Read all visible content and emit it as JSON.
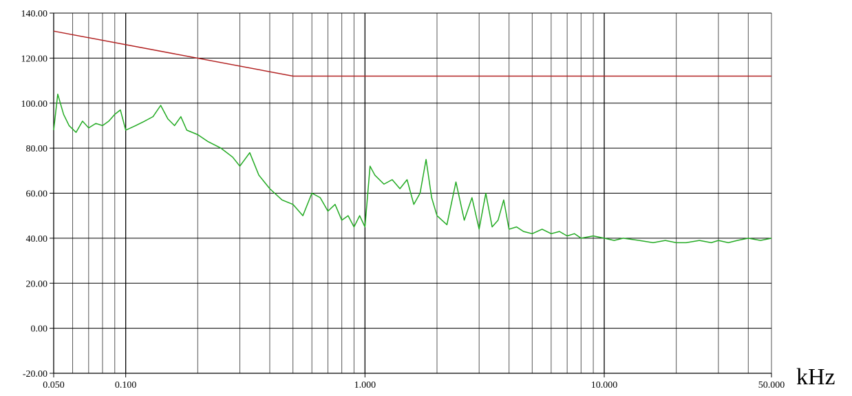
{
  "chart_data": {
    "type": "line",
    "x_scale": "log",
    "xlim": [
      0.05,
      50.0
    ],
    "ylim": [
      -20.0,
      140.0
    ],
    "x_unit_label": "kHz",
    "grid": true,
    "y_ticks": [
      {
        "value": 140,
        "label": "140.00"
      },
      {
        "value": 120,
        "label": "120.00"
      },
      {
        "value": 100,
        "label": "100.00"
      },
      {
        "value": 80,
        "label": "80.00"
      },
      {
        "value": 60,
        "label": "60.00"
      },
      {
        "value": 40,
        "label": "40.00"
      },
      {
        "value": 20,
        "label": "20.00"
      },
      {
        "value": 0,
        "label": "0.00"
      },
      {
        "value": -20,
        "label": "-20.00"
      }
    ],
    "x_ticks": [
      {
        "value": 0.05,
        "label": "0.050"
      },
      {
        "value": 0.1,
        "label": "0.100"
      },
      {
        "value": 1.0,
        "label": "1.000"
      },
      {
        "value": 10.0,
        "label": "10.000"
      },
      {
        "value": 50.0,
        "label": "50.000"
      }
    ],
    "series": [
      {
        "color": "#b22222",
        "x": [
          0.05,
          0.5,
          50.0
        ],
        "y": [
          132,
          112,
          112
        ]
      },
      {
        "color": "#22aa22",
        "x": [
          0.05,
          0.052,
          0.055,
          0.058,
          0.062,
          0.066,
          0.07,
          0.075,
          0.08,
          0.085,
          0.09,
          0.095,
          0.1,
          0.11,
          0.12,
          0.13,
          0.14,
          0.15,
          0.16,
          0.17,
          0.18,
          0.2,
          0.22,
          0.25,
          0.28,
          0.3,
          0.33,
          0.36,
          0.4,
          0.45,
          0.5,
          0.55,
          0.6,
          0.65,
          0.7,
          0.75,
          0.8,
          0.85,
          0.9,
          0.95,
          1.0,
          1.05,
          1.1,
          1.2,
          1.3,
          1.4,
          1.5,
          1.6,
          1.7,
          1.8,
          1.9,
          2.0,
          2.2,
          2.4,
          2.6,
          2.8,
          3.0,
          3.2,
          3.4,
          3.6,
          3.8,
          4.0,
          4.3,
          4.6,
          5.0,
          5.5,
          6.0,
          6.5,
          7.0,
          7.5,
          8.0,
          9.0,
          10.0,
          11.0,
          12.0,
          14.0,
          16.0,
          18.0,
          20.0,
          22.0,
          25.0,
          28.0,
          30.0,
          33.0,
          36.0,
          40.0,
          45.0,
          50.0
        ],
        "y": [
          88,
          104,
          95,
          90,
          87,
          92,
          89,
          91,
          90,
          92,
          95,
          97,
          88,
          90,
          92,
          94,
          99,
          93,
          90,
          94,
          88,
          86,
          83,
          80,
          76,
          72,
          78,
          68,
          62,
          57,
          55,
          50,
          60,
          58,
          52,
          55,
          48,
          50,
          45,
          50,
          45,
          72,
          68,
          64,
          66,
          62,
          66,
          55,
          60,
          75,
          58,
          50,
          46,
          65,
          48,
          58,
          44,
          60,
          45,
          48,
          57,
          44,
          45,
          43,
          42,
          44,
          42,
          43,
          41,
          42,
          40,
          41,
          40,
          39,
          40,
          39,
          38,
          39,
          38,
          38,
          39,
          38,
          39,
          38,
          39,
          40,
          39,
          40
        ]
      }
    ]
  }
}
